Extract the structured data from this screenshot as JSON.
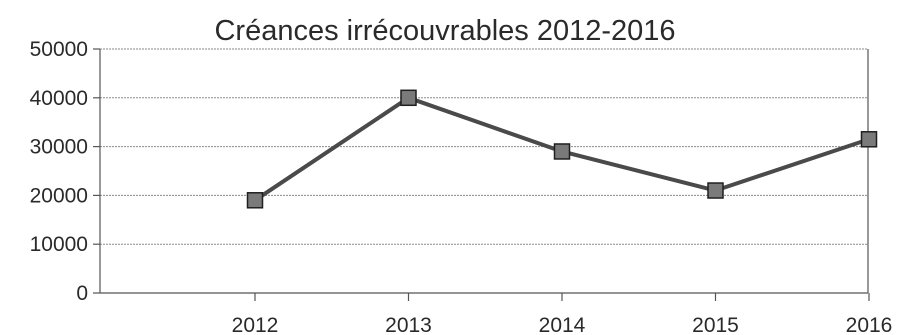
{
  "chart_data": {
    "type": "line",
    "title": "Créances irrécouvrables 2012-2016",
    "categories": [
      "2012",
      "2013",
      "2014",
      "2015",
      "2016"
    ],
    "series": [
      {
        "values": [
          19000,
          40000,
          29000,
          21000,
          31500
        ],
        "color": "#4a4a4a",
        "marker": "square",
        "marker_color": "#7a7a7a"
      }
    ],
    "y_ticks": [
      "0",
      "10000",
      "20000",
      "30000",
      "40000",
      "50000"
    ],
    "ylim": [
      0,
      50000
    ],
    "grid": true,
    "legend": "none"
  }
}
